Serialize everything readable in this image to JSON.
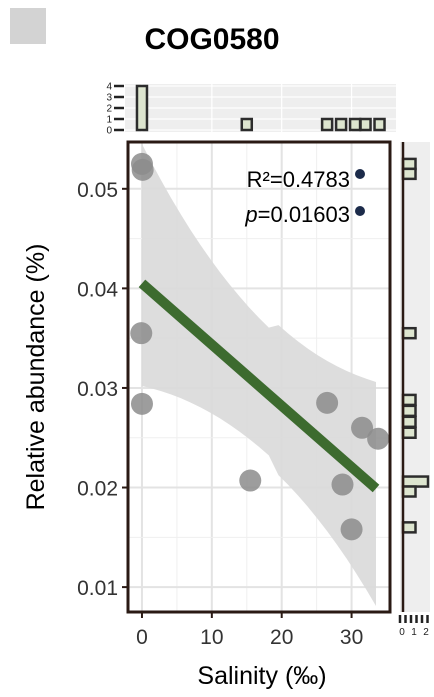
{
  "badge_color": "#d3d3d3",
  "chart_data": {
    "type": "scatter",
    "title": "COG0580",
    "xlabel": "Salinity (‰)",
    "ylabel": "Relative abundance (%)",
    "xlim": [
      -2,
      35.5
    ],
    "ylim": [
      0.0075,
      0.0547
    ],
    "x_ticks": [
      0,
      10,
      20,
      30
    ],
    "x_tick_labels": [
      "0",
      "10",
      "20",
      "30"
    ],
    "y_ticks": [
      0.01,
      0.02,
      0.03,
      0.04,
      0.05
    ],
    "y_tick_labels": [
      "0.01",
      "0.02",
      "0.03",
      "0.04",
      "0.05"
    ],
    "grid": true,
    "points": [
      {
        "x": 0,
        "y": 0.0525
      },
      {
        "x": 0.1,
        "y": 0.0519
      },
      {
        "x": -0.1,
        "y": 0.0355
      },
      {
        "x": 0,
        "y": 0.0284
      },
      {
        "x": 15.5,
        "y": 0.0207
      },
      {
        "x": 26.5,
        "y": 0.0285
      },
      {
        "x": 28.7,
        "y": 0.0203
      },
      {
        "x": 30,
        "y": 0.0158
      },
      {
        "x": 31.5,
        "y": 0.026
      },
      {
        "x": 33.8,
        "y": 0.0249
      }
    ],
    "fit": {
      "x": [
        0,
        33.5
      ],
      "y": [
        0.0405,
        0.0199
      ],
      "ci_upper": [
        0.0545,
        0.0306
      ],
      "ci_lower": [
        0.0302,
        0.0081
      ]
    },
    "annotations": {
      "r2_text": "R²=0.4783",
      "p_prefix": "p",
      "p_value": "=0.01603"
    },
    "top_histogram": {
      "y_tick_labels": [
        "0",
        "1",
        "2",
        "3",
        "4"
      ],
      "bins": [
        {
          "x": 0,
          "count": 4
        },
        {
          "x": 15,
          "count": 1
        },
        {
          "x": 26.5,
          "count": 1
        },
        {
          "x": 28.5,
          "count": 1
        },
        {
          "x": 30.5,
          "count": 1
        },
        {
          "x": 32,
          "count": 1
        },
        {
          "x": 34,
          "count": 1
        }
      ],
      "max": 4
    },
    "right_histogram": {
      "x_tick_labels": [
        "0",
        "1",
        "2"
      ],
      "bins": [
        {
          "y": 0.0525,
          "count": 1
        },
        {
          "y": 0.0515,
          "count": 1
        },
        {
          "y": 0.0355,
          "count": 1
        },
        {
          "y": 0.0288,
          "count": 1
        },
        {
          "y": 0.0277,
          "count": 1
        },
        {
          "y": 0.0266,
          "count": 1
        },
        {
          "y": 0.0255,
          "count": 1
        },
        {
          "y": 0.0206,
          "count": 2
        },
        {
          "y": 0.0196,
          "count": 1
        },
        {
          "y": 0.016,
          "count": 1
        }
      ],
      "max": 2
    },
    "colors": {
      "points": "#8c8c8c",
      "fit_line": "#3d6b2f",
      "ci_band": "#d9d9d9",
      "annotation_dot": "#1c2b4a",
      "hist_fill": "#dde5cf",
      "hist_edge": "#2c2c2c",
      "panel_bg": "#eeeeee"
    }
  }
}
